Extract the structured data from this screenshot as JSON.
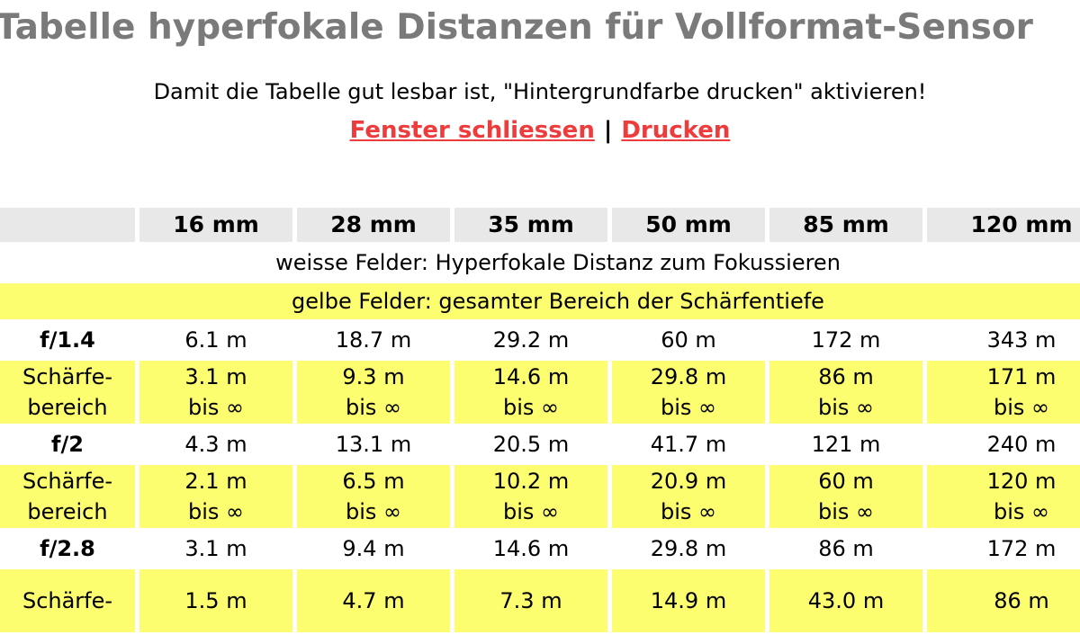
{
  "header": {
    "title": "Tabelle hyperfokale Distanzen für Vollformat-Sensor",
    "instruction": "Damit die Tabelle gut lesbar ist, \"Hintergrundfarbe drucken\" aktivieren!",
    "links": [
      "Fenster schliessen",
      "Drucken"
    ],
    "separator": "|"
  },
  "table": {
    "columns": [
      "16 mm",
      "28 mm",
      "35 mm",
      "50 mm",
      "85 mm",
      "120 mm"
    ],
    "notes": [
      "weisse Felder: Hyperfokale Distanz zum Fokussieren",
      "gelbe Felder: gesamter Bereich der Schärfentiefe"
    ],
    "rows": [
      {
        "aperture": "f/1.4",
        "hyperfocal": [
          "6.1 m",
          "18.7 m",
          "29.2 m",
          "60 m",
          "172 m",
          "343 m"
        ],
        "range_label": [
          "Schärfe-",
          "bereich"
        ],
        "range": [
          {
            "from": "3.1 m",
            "to": "bis ∞"
          },
          {
            "from": "9.3 m",
            "to": "bis ∞"
          },
          {
            "from": "14.6 m",
            "to": "bis ∞"
          },
          {
            "from": "29.8 m",
            "to": "bis ∞"
          },
          {
            "from": "86 m",
            "to": "bis ∞"
          },
          {
            "from": "171 m",
            "to": "bis ∞"
          }
        ]
      },
      {
        "aperture": "f/2",
        "hyperfocal": [
          "4.3 m",
          "13.1 m",
          "20.5 m",
          "41.7 m",
          "121 m",
          "240 m"
        ],
        "range_label": [
          "Schärfe-",
          "bereich"
        ],
        "range": [
          {
            "from": "2.1 m",
            "to": "bis ∞"
          },
          {
            "from": "6.5 m",
            "to": "bis ∞"
          },
          {
            "from": "10.2 m",
            "to": "bis ∞"
          },
          {
            "from": "20.9 m",
            "to": "bis ∞"
          },
          {
            "from": "60 m",
            "to": "bis ∞"
          },
          {
            "from": "120 m",
            "to": "bis ∞"
          }
        ]
      },
      {
        "aperture": "f/2.8",
        "hyperfocal": [
          "3.1 m",
          "9.4 m",
          "14.6 m",
          "29.8 m",
          "86 m",
          "172 m"
        ],
        "range_label": [
          "Schärfe-"
        ],
        "range": [
          {
            "from": "1.5 m"
          },
          {
            "from": "4.7 m"
          },
          {
            "from": "7.3 m"
          },
          {
            "from": "14.9 m"
          },
          {
            "from": "43.0 m"
          },
          {
            "from": "86 m"
          }
        ]
      }
    ]
  }
}
